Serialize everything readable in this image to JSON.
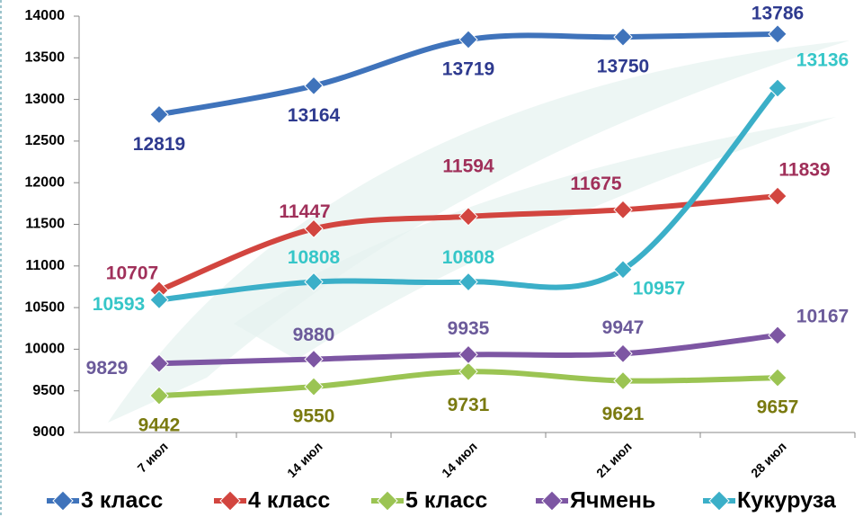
{
  "chart_data": {
    "type": "line",
    "categories": [
      "7 июл",
      "14 июл",
      "14 июл",
      "21 июл",
      "28 июл"
    ],
    "series": [
      {
        "name": "3 класс",
        "color": "#3f73bb",
        "label_color": "#2e3a8f",
        "values": [
          12819,
          13164,
          13719,
          13750,
          13786
        ]
      },
      {
        "name": "4 класс",
        "color": "#d2453f",
        "label_color": "#a0305a",
        "values": [
          10707,
          11447,
          11594,
          11675,
          11839
        ]
      },
      {
        "name": "5 класс",
        "color": "#9bc453",
        "label_color": "#7a7a10",
        "values": [
          9442,
          9550,
          9731,
          9621,
          9657
        ]
      },
      {
        "name": "Ячмень",
        "color": "#7d56a3",
        "label_color": "#6b5a9a",
        "values": [
          9829,
          9880,
          9935,
          9947,
          10167
        ]
      },
      {
        "name": "Кукуруза",
        "color": "#3bafc8",
        "label_color": "#36c6c8",
        "values": [
          10593,
          10808,
          10808,
          10957,
          13136
        ]
      }
    ],
    "ylim": [
      9000,
      14000
    ],
    "yticks": [
      9000,
      9500,
      10000,
      10500,
      11000,
      11500,
      12000,
      12500,
      13000,
      13500,
      14000
    ],
    "smooth": true
  }
}
